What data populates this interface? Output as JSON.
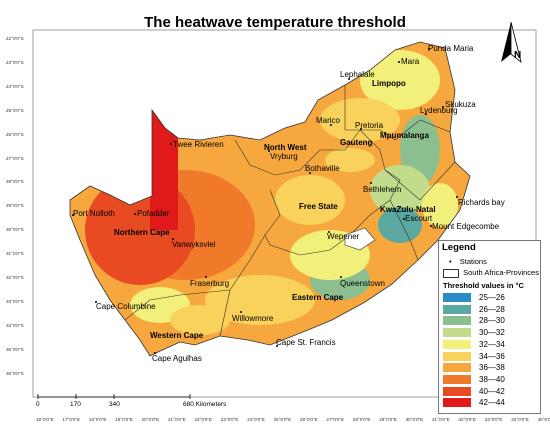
{
  "map": {
    "title": "The heatwave temperature threshold",
    "latitude_ticks": [
      "22°0'0\"S",
      "23°0'0\"S",
      "24°0'0\"S",
      "25°0'0\"S",
      "26°0'0\"S",
      "27°0'0\"S",
      "28°0'0\"S",
      "29°0'0\"S",
      "30°0'0\"S",
      "31°0'0\"S",
      "32°0'0\"S",
      "33°0'0\"S",
      "34°0'0\"S",
      "35°0'0\"S",
      "36°0'0\"S"
    ],
    "longitude_ticks": [
      "16°0'0\"E",
      "17°0'0\"E",
      "18°0'0\"E",
      "19°0'0\"E",
      "20°0'0\"E",
      "21°0'0\"E",
      "22°0'0\"E",
      "23°0'0\"E",
      "24°0'0\"E",
      "25°0'0\"E",
      "26°0'0\"E",
      "27°0'0\"E",
      "28°0'0\"E",
      "29°0'0\"E",
      "30°0'0\"E",
      "31°0'0\"E",
      "32°0'0\"E",
      "33°0'0\"E",
      "34°0'0\"E",
      "35°0'0\"E"
    ],
    "stations": [
      "Punda Maria",
      "Mara",
      "Lephalale",
      "Limpopo",
      "Skukuza",
      "Lydenburg",
      "Marico",
      "Pretoria",
      "Mpumalanga",
      "Gauteng",
      "Twee Rivieren",
      "North West",
      "Vryburg",
      "Bothaville",
      "Bethlehem",
      "Richards bay",
      "KwaZulu-Natal",
      "Escourt",
      "Port Nolloth",
      "Pofadder",
      "Free State",
      "Mount Edgecombe",
      "Northern Cape",
      "Vanwyksvlei",
      "Wepener",
      "Queenstown",
      "Fraserburg",
      "Cape Columbine",
      "Eastern Cape",
      "Willowmore",
      "Western Cape",
      "Cape St. Francis",
      "Cape Agulhas"
    ],
    "provinces": [
      "Limpopo",
      "Mpumalanga",
      "Gauteng",
      "North West",
      "KwaZulu-Natal",
      "Free State",
      "Northern Cape",
      "Eastern Cape",
      "Western Cape"
    ],
    "scale_bar": {
      "ticks": [
        "0",
        "170",
        "340",
        "680 Kilometers"
      ]
    },
    "north_label": "N"
  },
  "legend": {
    "title": "Legend",
    "stations_label": "Stations",
    "provinces_label": "South Africa-Provinces",
    "threshold_title": "Threshold values in °C",
    "classes": [
      {
        "label": "25—26",
        "color": "#2a8cc4"
      },
      {
        "label": "26—28",
        "color": "#5aa89f"
      },
      {
        "label": "28—30",
        "color": "#8cbf8f"
      },
      {
        "label": "30—32",
        "color": "#c2dc8c"
      },
      {
        "label": "32—34",
        "color": "#f2f07a"
      },
      {
        "label": "34—36",
        "color": "#f8d25a"
      },
      {
        "label": "36—38",
        "color": "#f6a83e"
      },
      {
        "label": "38—40",
        "color": "#f07a2a"
      },
      {
        "label": "40—42",
        "color": "#e84a22"
      },
      {
        "label": "42—44",
        "color": "#e0191b"
      }
    ]
  }
}
